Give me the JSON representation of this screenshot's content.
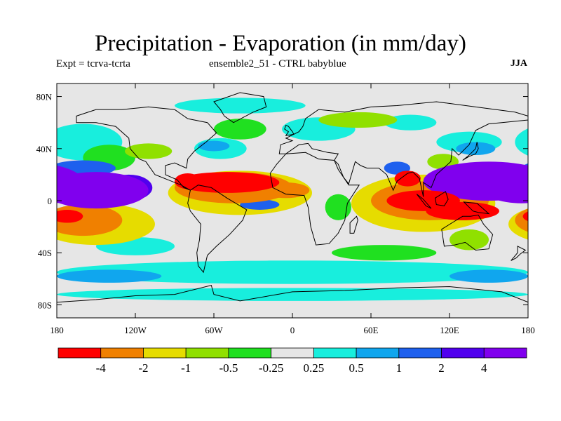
{
  "header": {
    "title": "Precipitation - Evaporation (in mm/day)",
    "left": "Expt = tcrva-tcrta",
    "center": "ensemble2_51 - CTRL babyblue",
    "right": "JJA"
  },
  "chart_data": {
    "type": "heatmap",
    "title": "Precipitation - Evaporation (in mm/day)",
    "subtitle_left": "Expt = tcrva-tcrta",
    "subtitle_center": "ensemble2_51 - CTRL babyblue",
    "season": "JJA",
    "x": {
      "range": [
        -180,
        180
      ],
      "ticks": [
        -180,
        -120,
        -60,
        0,
        60,
        120,
        180
      ],
      "tick_labels": [
        "180",
        "120W",
        "60W",
        "0",
        "60E",
        "120E",
        "180"
      ]
    },
    "y": {
      "range": [
        -90,
        90
      ],
      "ticks": [
        80,
        40,
        0,
        -40,
        -80
      ],
      "tick_labels": [
        "80N",
        "40N",
        "0",
        "40S",
        "80S"
      ]
    },
    "colorbar": {
      "colors": [
        "#ff0000",
        "#f08000",
        "#e6dc00",
        "#90e000",
        "#20e020",
        "#e6e6e6",
        "#18eedd",
        "#10a6ee",
        "#1e60ee",
        "#5000ee",
        "#8000ee"
      ],
      "labels": [
        "-4",
        "-2",
        "-1",
        "-0.5",
        "-0.25",
        "0.25",
        "0.5",
        "1",
        "2",
        "4"
      ]
    },
    "background_level": 5,
    "regions": [
      {
        "name": "west-pacific-wet",
        "lon": 150,
        "lat": 15,
        "rlon": 50,
        "rlat": 15,
        "level": 10
      },
      {
        "name": "west-pacific-wet-2",
        "lon": 175,
        "lat": 10,
        "rlon": 30,
        "rlat": 12,
        "level": 10
      },
      {
        "name": "east-pacific-wet",
        "lon": -150,
        "lat": 8,
        "rlon": 40,
        "rlat": 14,
        "level": 10
      },
      {
        "name": "east-pacific-wet-2",
        "lon": -125,
        "lat": 10,
        "rlon": 18,
        "rlat": 10,
        "level": 9
      },
      {
        "name": "north-pacific-blue",
        "lon": -160,
        "lat": 25,
        "rlon": 25,
        "rlat": 6,
        "level": 8
      },
      {
        "name": "atlantic-itcz-dry",
        "lon": -50,
        "lat": 14,
        "rlon": 40,
        "rlat": 8,
        "level": 0
      },
      {
        "name": "caribbean-dry",
        "lon": -80,
        "lat": 15,
        "rlon": 10,
        "rlat": 6,
        "level": 0
      },
      {
        "name": "atlantic-orange-band",
        "lon": -45,
        "lat": 10,
        "rlon": 45,
        "rlat": 12,
        "level": 1
      },
      {
        "name": "africa-orange",
        "lon": -5,
        "lat": 8,
        "rlon": 18,
        "rlat": 6,
        "level": 1
      },
      {
        "name": "atlantic-yellow-band",
        "lon": -40,
        "lat": 6,
        "rlon": 55,
        "rlat": 17,
        "level": 2
      },
      {
        "name": "south-atlantic-blue",
        "lon": -25,
        "lat": -3,
        "rlon": 15,
        "rlat": 4,
        "level": 8
      },
      {
        "name": "amazon-blue",
        "lon": -55,
        "lat": -3,
        "rlon": 14,
        "rlat": 5,
        "level": 7
      },
      {
        "name": "indian-ocean-dry",
        "lon": 100,
        "lat": 0,
        "rlon": 28,
        "rlat": 8,
        "level": 0
      },
      {
        "name": "indonesia-dry",
        "lon": 130,
        "lat": -8,
        "rlon": 28,
        "rlat": 7,
        "level": 0
      },
      {
        "name": "bay-of-bengal-dry",
        "lon": 88,
        "lat": 17,
        "rlon": 10,
        "rlat": 6,
        "level": 0
      },
      {
        "name": "indian-ocean-orange",
        "lon": 105,
        "lat": 0,
        "rlon": 45,
        "rlat": 15,
        "level": 1
      },
      {
        "name": "indian-ocean-yellow",
        "lon": 100,
        "lat": -2,
        "rlon": 55,
        "rlat": 22,
        "level": 2
      },
      {
        "name": "india-blue",
        "lon": 80,
        "lat": 25,
        "rlon": 10,
        "rlat": 5,
        "level": 8
      },
      {
        "name": "south-pacific-dry",
        "lon": -172,
        "lat": -12,
        "rlon": 12,
        "rlat": 5,
        "level": 0
      },
      {
        "name": "south-pacific-orange",
        "lon": -160,
        "lat": -15,
        "rlon": 30,
        "rlat": 12,
        "level": 1
      },
      {
        "name": "south-pacific-yellow",
        "lon": -150,
        "lat": -18,
        "rlon": 45,
        "rlat": 16,
        "level": 2
      },
      {
        "name": "north-pacific-cyan",
        "lon": -160,
        "lat": 45,
        "rlon": 30,
        "rlat": 14,
        "level": 6
      },
      {
        "name": "north-pacific-green",
        "lon": -140,
        "lat": 33,
        "rlon": 20,
        "rlat": 10,
        "level": 4
      },
      {
        "name": "n-america-green",
        "lon": -110,
        "lat": 38,
        "rlon": 18,
        "rlat": 6,
        "level": 3
      },
      {
        "name": "gulf-stream-cyan",
        "lon": -55,
        "lat": 40,
        "rlon": 20,
        "rlat": 8,
        "level": 6
      },
      {
        "name": "gulf-stream-blue",
        "lon": -60,
        "lat": 42,
        "rlon": 12,
        "rlat": 4,
        "level": 7
      },
      {
        "name": "north-atlantic-green",
        "lon": -40,
        "lat": 55,
        "rlon": 20,
        "rlat": 8,
        "level": 4
      },
      {
        "name": "europe-cyan",
        "lon": 20,
        "lat": 55,
        "rlon": 28,
        "rlat": 9,
        "level": 6
      },
      {
        "name": "siberia-green",
        "lon": 50,
        "lat": 62,
        "rlon": 30,
        "rlat": 6,
        "level": 3
      },
      {
        "name": "siberia-cyan",
        "lon": 90,
        "lat": 60,
        "rlon": 20,
        "rlat": 6,
        "level": 6
      },
      {
        "name": "east-asia-cyan",
        "lon": 135,
        "lat": 45,
        "rlon": 25,
        "rlat": 8,
        "level": 6
      },
      {
        "name": "east-asia-blue",
        "lon": 140,
        "lat": 40,
        "rlon": 15,
        "rlat": 5,
        "level": 7
      },
      {
        "name": "arctic-cyan",
        "lon": -40,
        "lat": 73,
        "rlon": 50,
        "rlat": 6,
        "level": 6
      },
      {
        "name": "china-green",
        "lon": 115,
        "lat": 30,
        "rlon": 12,
        "rlat": 6,
        "level": 3
      },
      {
        "name": "south-ocean-cyan",
        "lon": 0,
        "lat": -55,
        "rlon": 180,
        "rlat": 9,
        "level": 6
      },
      {
        "name": "south-ocean-blue-w",
        "lon": -140,
        "lat": -58,
        "rlon": 40,
        "rlat": 5,
        "level": 7
      },
      {
        "name": "south-ocean-blue-e",
        "lon": 150,
        "lat": -58,
        "rlon": 30,
        "rlat": 5,
        "level": 7
      },
      {
        "name": "south-indian-green",
        "lon": 70,
        "lat": -40,
        "rlon": 40,
        "rlat": 6,
        "level": 4
      },
      {
        "name": "antarctic-cyan",
        "lon": 0,
        "lat": -72,
        "rlon": 180,
        "rlat": 5,
        "level": 6
      },
      {
        "name": "australia-green",
        "lon": 135,
        "lat": -30,
        "rlon": 15,
        "rlat": 8,
        "level": 3
      },
      {
        "name": "east-africa-green",
        "lon": 35,
        "lat": -5,
        "rlon": 10,
        "rlat": 10,
        "level": 4
      },
      {
        "name": "south-pacific-cyan",
        "lon": -120,
        "lat": -35,
        "rlon": 30,
        "rlat": 7,
        "level": 6
      }
    ]
  }
}
